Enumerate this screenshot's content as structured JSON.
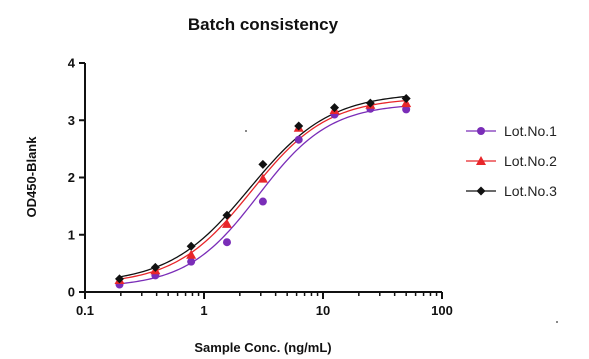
{
  "chart_data": {
    "type": "scatter",
    "title": "Batch consistency",
    "xlabel": "Sample Conc. (ng/mL)",
    "ylabel": "OD450-Blank",
    "xscale": "log",
    "xlim": [
      0.1,
      100
    ],
    "ylim": [
      0,
      4
    ],
    "xticks": [
      0.1,
      1,
      10,
      100
    ],
    "xtick_labels": [
      "0.1",
      "1",
      "10",
      "100"
    ],
    "yticks": [
      0,
      1,
      2,
      3,
      4
    ],
    "ytick_labels": [
      "0",
      "1",
      "2",
      "3",
      "4"
    ],
    "grid": false,
    "legend_position": "right",
    "x": [
      0.195,
      0.39,
      0.78,
      1.56,
      3.125,
      6.25,
      12.5,
      25,
      50
    ],
    "series": [
      {
        "name": "Lot.No.1",
        "color": "#7a2db8",
        "marker": "circle",
        "values": [
          0.13,
          0.29,
          0.53,
          0.87,
          1.58,
          2.66,
          3.1,
          3.2,
          3.19
        ]
      },
      {
        "name": "Lot.No.2",
        "color": "#e8262a",
        "marker": "triangle",
        "values": [
          0.21,
          0.38,
          0.65,
          1.19,
          1.98,
          2.87,
          3.18,
          3.27,
          3.3
        ]
      },
      {
        "name": "Lot.No.3",
        "color": "#111111",
        "marker": "diamond",
        "values": [
          0.23,
          0.43,
          0.8,
          1.34,
          2.23,
          2.9,
          3.22,
          3.3,
          3.38
        ]
      }
    ]
  }
}
